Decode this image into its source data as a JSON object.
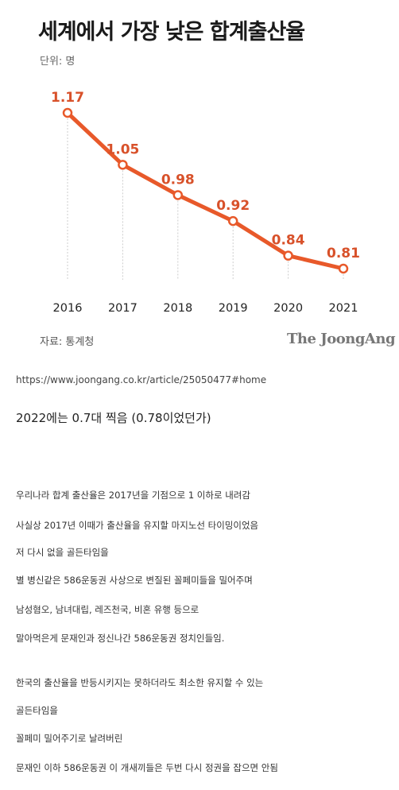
{
  "header": {
    "title": "세계에서 가장 낮은 합계출산율",
    "unit": "단위: 명"
  },
  "chart_data": {
    "type": "line",
    "x": [
      "2016",
      "2017",
      "2018",
      "2019",
      "2020",
      "2021"
    ],
    "series": [
      {
        "values": [
          1.17,
          1.05,
          0.98,
          0.92,
          0.84,
          0.81
        ]
      }
    ],
    "data_labels": [
      "1.17",
      "1.05",
      "0.98",
      "0.92",
      "0.84",
      "0.81"
    ],
    "ylim": [
      0.7,
      1.2
    ],
    "grid": false,
    "colors": {
      "line": "#e8592a",
      "label": "#d8512a",
      "axis": "#222222",
      "guide": "#cccccc"
    }
  },
  "footer": {
    "source": "자료: 통계청",
    "brand": "The JoongAng"
  },
  "post": {
    "url": "https://www.joongang.co.kr/article/25050477#home",
    "comment": "2022에는 0.7대 찍음 (0.78이었던가)",
    "lines": [
      "우리나라 합계 출산율은 2017년을 기점으로 1 이하로 내려감",
      "사실상 2017년 이때가 출산율을 유지할 마지노선 타이밍이었음",
      "저 다시 없을 골든타임을",
      "별 병신같은 586운동권 사상으로 변질된 꼴페미들을 밀어주며",
      "남성혐오, 남녀대립, 레즈천국, 비혼 유행 등으로",
      "말아먹은게 문재인과 정신나간 586운동권 정치인들임.",
      "한국의 출산율을 반등시키지는 못하더라도 최소한 유지할 수 있는",
      "골든타임을",
      "꼴페미 밀어주기로 날려버린",
      "문재인 이하 586운동권 이 개새끼들은 두번 다시 정권을 잡으면 안됨"
    ]
  }
}
